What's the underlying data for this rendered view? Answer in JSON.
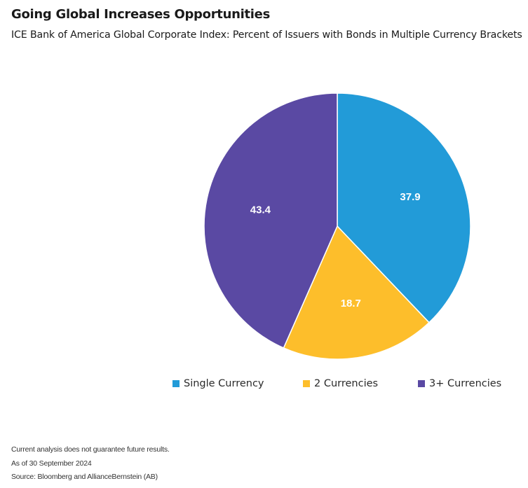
{
  "header": {
    "title": "Going Global Increases Opportunities",
    "subtitle": "ICE Bank of America Global Corporate Index: Percent of Issuers with Bonds in Multiple Currency Brackets"
  },
  "chart_data": {
    "type": "pie",
    "categories": [
      "Single Currency",
      "2 Currencies",
      "3+ Currencies"
    ],
    "values": [
      37.9,
      18.7,
      43.4
    ],
    "value_labels": [
      "37.9",
      "18.7",
      "43.4"
    ],
    "colors": [
      "#229BD8",
      "#FDBE2B",
      "#5A49A3"
    ],
    "start": "12 o'clock",
    "direction": "clockwise",
    "legend_position": "bottom",
    "title": "Going Global Increases Opportunities",
    "subtitle": "ICE Bank of America Global Corporate Index: Percent of Issuers with Bonds in Multiple Currency Brackets"
  },
  "legend": {
    "items": [
      {
        "label": "Single Currency",
        "color": "#229BD8"
      },
      {
        "label": "2 Currencies",
        "color": "#FDBE2B"
      },
      {
        "label": "3+ Currencies",
        "color": "#5A49A3"
      }
    ]
  },
  "footer": {
    "disclaimer": "Current analysis does not guarantee future results.",
    "as_of": "As of 30 September 2024",
    "source": "Source: Bloomberg and AllianceBernstein (AB)"
  }
}
